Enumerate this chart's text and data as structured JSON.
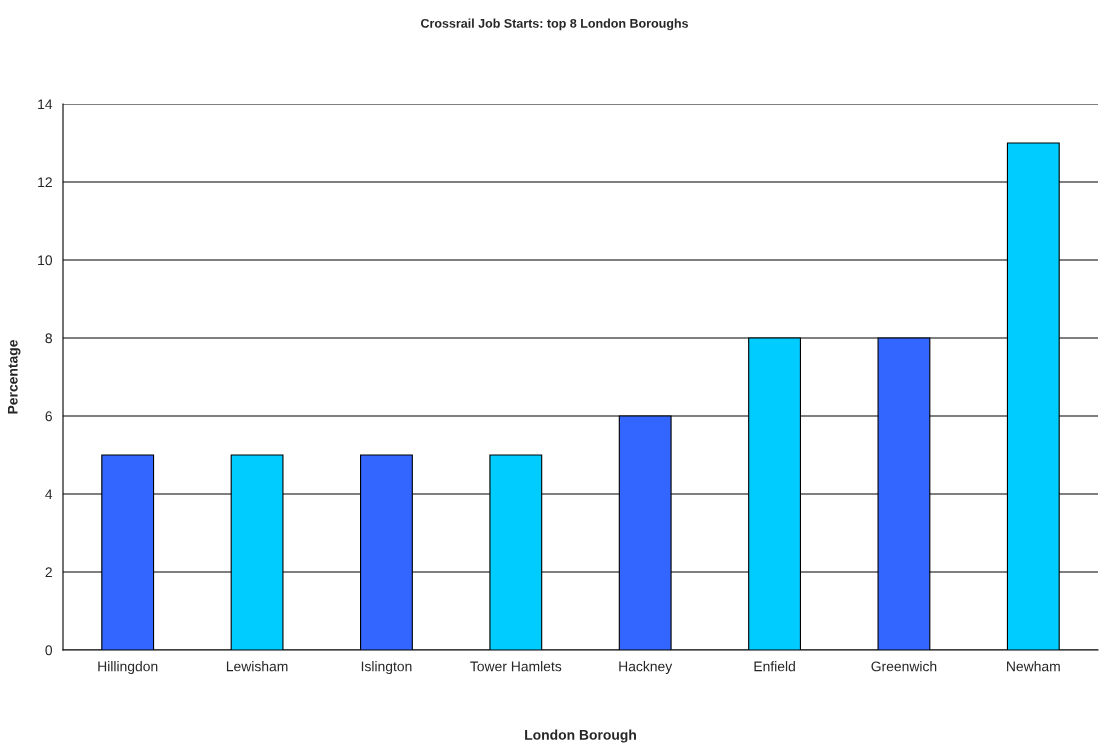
{
  "chart_data": {
    "type": "bar",
    "title": "Crossrail Job Starts: top 8 London Boroughs",
    "xlabel": "London Borough",
    "ylabel": "Percentage",
    "categories": [
      "Hillingdon",
      "Lewisham",
      "Islington",
      "Tower Hamlets",
      "Hackney",
      "Enfield",
      "Greenwich",
      "Newham"
    ],
    "values": [
      5,
      5,
      5,
      5,
      6,
      8,
      8,
      13
    ],
    "colors": [
      "#3366ff",
      "#00ccff",
      "#3366ff",
      "#00ccff",
      "#3366ff",
      "#00ccff",
      "#3366ff",
      "#00ccff"
    ],
    "ylim": [
      0,
      14
    ],
    "yticks": [
      0,
      2,
      4,
      6,
      8,
      10,
      12,
      14
    ],
    "grid": "y"
  }
}
